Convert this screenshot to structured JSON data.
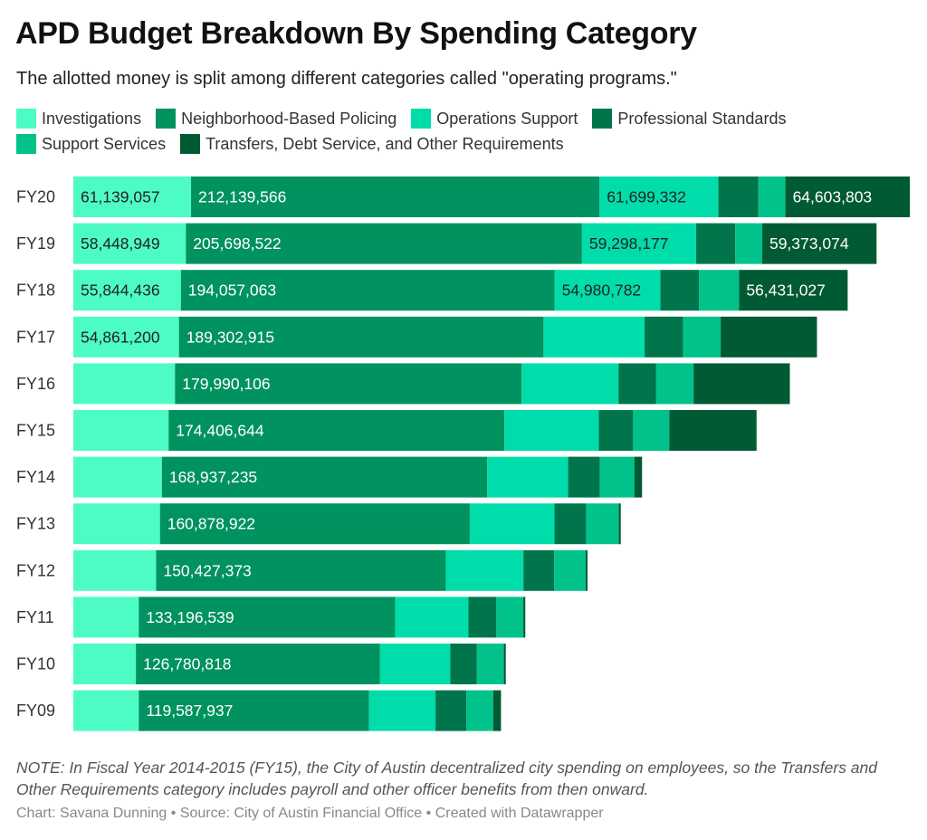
{
  "title": "APD Budget Breakdown By Spending Category",
  "subtitle": "The allotted money is split among different categories called \"operating programs.\"",
  "note": "NOTE: In Fiscal Year 2014-2015 (FY15), the City of Austin decentralized city spending on employees, so the Transfers and Other Requirements category includes payroll and other officer benefits from then onward.",
  "footer": "Chart: Savana Dunning • Source: City of Austin Financial Office • Created with Datawrapper",
  "colors": {
    "investigations": "#4dfcc4",
    "neighborhood": "#00925f",
    "operations": "#00ddaa",
    "professional": "#00754b",
    "support": "#00c28a",
    "transfers": "#005a33",
    "label_dark": "#222222",
    "label_light": "#ffffff"
  },
  "chart_data": {
    "type": "bar",
    "orientation": "horizontal",
    "stacked": true,
    "legend_position": "top",
    "categories": [
      "FY20",
      "FY19",
      "FY18",
      "FY17",
      "FY16",
      "FY15",
      "FY14",
      "FY13",
      "FY12",
      "FY11",
      "FY10",
      "FY09"
    ],
    "series": [
      {
        "name": "Investigations",
        "color_key": "investigations",
        "label_color": "dark",
        "values": [
          61139057,
          58448949,
          55844436,
          54861200,
          52800000,
          49500000,
          46000000,
          45000000,
          43000000,
          34000000,
          32500000,
          34000000
        ],
        "labels": [
          "61,139,057",
          "58,448,949",
          "55,844,436",
          "54,861,200",
          "",
          "",
          "",
          "",
          "",
          "",
          "",
          ""
        ]
      },
      {
        "name": "Neighborhood-Based Policing",
        "color_key": "neighborhood",
        "label_color": "light",
        "values": [
          212139566,
          205698522,
          194057063,
          189302915,
          179990106,
          174406644,
          168937235,
          160878922,
          150427373,
          133196539,
          126780818,
          119587937
        ],
        "labels": [
          "212,139,566",
          "205,698,522",
          "194,057,063",
          "189,302,915",
          "179,990,106",
          "174,406,644",
          "168,937,235",
          "160,878,922",
          "150,427,373",
          "133,196,539",
          "126,780,818",
          "119,587,937"
        ]
      },
      {
        "name": "Operations Support",
        "color_key": "operations",
        "label_color": "dark",
        "values": [
          61699332,
          59298177,
          54980782,
          52500000,
          50300000,
          49000000,
          42000000,
          44000000,
          40300000,
          38000000,
          36500000,
          34500000
        ],
        "labels": [
          "61,699,332",
          "59,298,177",
          "54,980,782",
          "",
          "",
          "",
          "",
          "",
          "",
          "",
          "",
          ""
        ]
      },
      {
        "name": "Professional Standards",
        "color_key": "professional",
        "label_color": "light",
        "values": [
          20800000,
          20300000,
          20000000,
          20000000,
          19600000,
          17800000,
          16400000,
          16400000,
          16000000,
          14500000,
          13800000,
          16000000
        ],
        "labels": [
          "",
          "",
          "",
          "",
          "",
          "",
          "",
          "",
          "",
          "",
          "",
          ""
        ]
      },
      {
        "name": "Support Services",
        "color_key": "support",
        "label_color": "dark",
        "values": [
          14000000,
          14000000,
          20800000,
          19500000,
          19400000,
          18800000,
          18000000,
          17000000,
          16300000,
          14000000,
          14000000,
          14000000
        ],
        "labels": [
          "",
          "",
          "",
          "",
          "",
          "",
          "",
          "",
          "",
          "",
          "",
          ""
        ]
      },
      {
        "name": "Transfers, Debt Service, and Other Requirements",
        "color_key": "transfers",
        "label_color": "light",
        "values": [
          64603803,
          59373074,
          56431027,
          50000000,
          50000000,
          45300000,
          4000000,
          1000000,
          1000000,
          1000000,
          1000000,
          4000000
        ],
        "labels": [
          "64,603,803",
          "59,373,074",
          "56,431,027",
          "",
          "",
          "",
          "",
          "",
          "",
          "",
          "",
          ""
        ]
      }
    ]
  }
}
